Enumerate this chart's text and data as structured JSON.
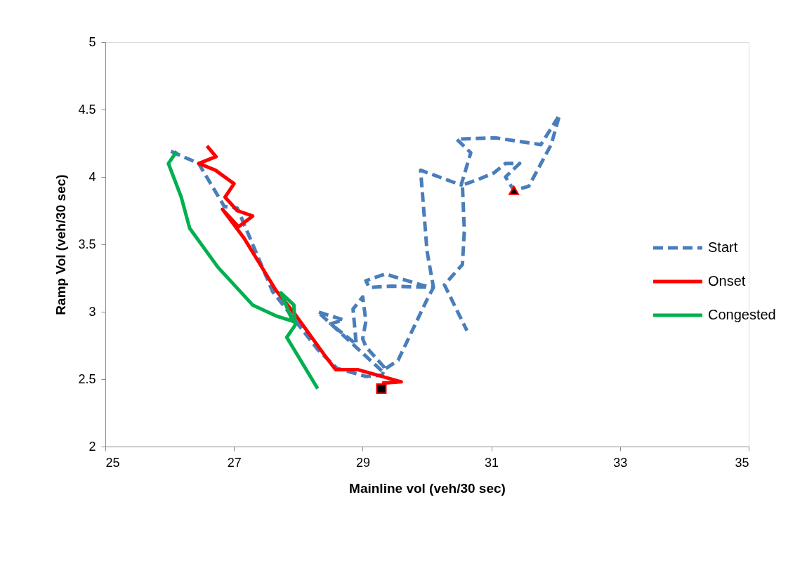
{
  "chart_data": {
    "type": "line",
    "xlabel": "Mainline vol (veh/30 sec)",
    "ylabel": "Ramp Vol (veh/30 sec)",
    "xlim": [
      25,
      35
    ],
    "xticks": [
      25,
      27,
      29,
      31,
      33,
      35
    ],
    "ylim": [
      2,
      5
    ],
    "yticks": [
      2,
      2.5,
      3,
      3.5,
      4,
      4.5,
      5
    ],
    "grid": false,
    "legend": "right",
    "series": [
      {
        "name": "Start",
        "color": "#4a7ebb",
        "line_style": "dashed",
        "x": [
          26.02,
          26.45,
          26.85,
          27.05,
          27.6,
          28.3,
          28.6,
          29.05,
          29.3,
          29.35,
          29.05,
          29.0,
          29.05,
          29.0,
          28.85,
          28.9,
          28.5,
          28.7,
          28.3,
          29.3,
          29.55,
          30.0,
          30.1,
          29.45,
          29.1,
          29.05,
          29.35,
          29.9,
          30.1,
          30.0,
          29.95,
          29.9,
          30.53,
          30.68,
          30.46,
          31.06,
          31.77,
          32.06,
          31.93,
          31.58,
          31.35,
          31.22,
          31.44,
          31.22,
          31.04,
          30.79,
          30.55,
          30.58,
          30.55,
          30.27,
          30.62
        ],
        "values": [
          4.19,
          4.1,
          3.78,
          3.77,
          3.15,
          2.72,
          2.58,
          2.52,
          2.53,
          2.58,
          2.74,
          2.8,
          2.93,
          3.11,
          3.02,
          2.76,
          2.91,
          2.94,
          3.0,
          2.56,
          2.64,
          3.09,
          3.18,
          3.19,
          3.18,
          3.23,
          3.28,
          3.2,
          3.18,
          3.45,
          3.75,
          4.05,
          3.94,
          4.18,
          4.28,
          4.29,
          4.24,
          4.46,
          4.24,
          3.93,
          3.9,
          4.0,
          4.1,
          4.1,
          4.03,
          3.98,
          3.94,
          3.6,
          3.35,
          3.2,
          2.86
        ]
      },
      {
        "name": "Onset",
        "color": "#ff0000",
        "line_style": "solid",
        "x": [
          29.3,
          29.6,
          29.3,
          28.93,
          28.58,
          28.42,
          27.95,
          27.65,
          27.33,
          27.15,
          26.82,
          27.07,
          27.29,
          27.05,
          26.86,
          27.0,
          26.71,
          26.45,
          26.72,
          26.58
        ],
        "values": [
          2.47,
          2.48,
          2.52,
          2.57,
          2.57,
          2.67,
          2.98,
          3.16,
          3.41,
          3.55,
          3.76,
          3.63,
          3.71,
          3.75,
          3.85,
          3.95,
          4.05,
          4.1,
          4.15,
          4.23
        ]
      },
      {
        "name": "Congested",
        "color": "#00b050",
        "line_style": "solid",
        "x": [
          26.11,
          25.98,
          26.18,
          26.31,
          26.75,
          27.29,
          27.65,
          27.91,
          27.73,
          27.93,
          27.95,
          27.82,
          28.3
        ],
        "values": [
          4.19,
          4.1,
          3.85,
          3.62,
          3.33,
          3.05,
          2.97,
          2.93,
          3.14,
          3.05,
          2.9,
          2.81,
          2.43
        ]
      },
      {
        "type": "scatter",
        "marker": "triangle",
        "color": "#000000",
        "x": [
          31.35
        ],
        "values": [
          3.9
        ]
      },
      {
        "type": "scatter",
        "marker": "square",
        "color": "#000000",
        "x": [
          29.29
        ],
        "values": [
          2.43
        ]
      }
    ]
  }
}
